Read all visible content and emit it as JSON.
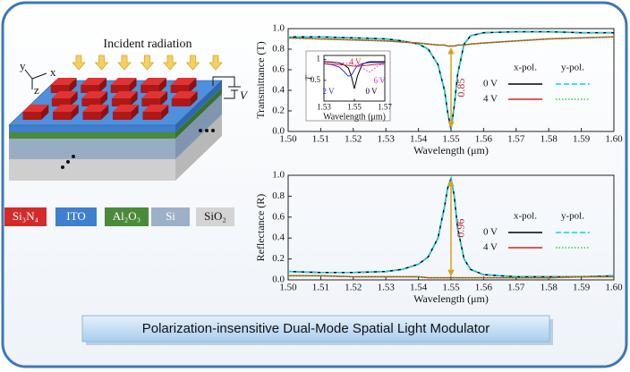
{
  "diagram": {
    "title": "Incident radiation",
    "axes": [
      "y",
      "x",
      "z"
    ],
    "voltage": "V",
    "materials": [
      {
        "name": "Si₃N₄",
        "color": "#d42a2a"
      },
      {
        "name": "ITO",
        "color": "#3f7fce"
      },
      {
        "name": "Al₂O₃",
        "color": "#4a8a3a"
      },
      {
        "name": "Si",
        "color": "#9cb0c8"
      },
      {
        "name": "SiO₂",
        "color": "#d4d4d4"
      }
    ]
  },
  "banner": "Polarization-insensitive Dual-Mode Spatial Light Modulator",
  "chart_data": [
    {
      "type": "line",
      "ylabel": "Transmittance (T)",
      "xlabel": "Wavelength (μm)",
      "annotation": "0.85",
      "xlim": [
        1.5,
        1.6
      ],
      "ylim": [
        0,
        1
      ],
      "xticks": [
        {
          "value": 1.5,
          "label": "1.50"
        },
        {
          "value": 1.51,
          "label": "1.51"
        },
        {
          "value": 1.52,
          "label": "1.52"
        },
        {
          "value": 1.53,
          "label": "1.53"
        },
        {
          "value": 1.54,
          "label": "1.54"
        },
        {
          "value": 1.55,
          "label": "1.55"
        },
        {
          "value": 1.56,
          "label": "1.56"
        },
        {
          "value": 1.57,
          "label": "1.57"
        },
        {
          "value": 1.58,
          "label": "1.58"
        },
        {
          "value": 1.59,
          "label": "1.59"
        },
        {
          "value": 1.6,
          "label": "1.60"
        }
      ],
      "yticks": [
        {
          "value": 0,
          "label": "0.0"
        },
        {
          "value": 0.2,
          "label": "0.2"
        },
        {
          "value": 0.4,
          "label": "0.4"
        },
        {
          "value": 0.6,
          "label": "0.6"
        },
        {
          "value": 0.8,
          "label": "0.8"
        },
        {
          "value": 1,
          "label": "1.0"
        }
      ],
      "x": [
        1.5,
        1.51,
        1.52,
        1.53,
        1.535,
        1.54,
        1.543,
        1.546,
        1.548,
        1.549,
        1.55,
        1.551,
        1.552,
        1.554,
        1.556,
        1.56,
        1.57,
        1.58,
        1.59,
        1.6
      ],
      "series": [
        {
          "name": "0 V",
          "pols": [
            {
              "name": "x-pol.",
              "color": "#000000",
              "style": "solid",
              "values": [
                0.92,
                0.92,
                0.91,
                0.9,
                0.88,
                0.85,
                0.8,
                0.65,
                0.4,
                0.18,
                0.02,
                0.25,
                0.55,
                0.85,
                0.93,
                0.96,
                0.97,
                0.97,
                0.96,
                0.96
              ]
            },
            {
              "name": "y-pol.",
              "color": "#10d0e0",
              "style": "dashed",
              "values": [
                0.92,
                0.92,
                0.91,
                0.9,
                0.88,
                0.85,
                0.8,
                0.65,
                0.4,
                0.18,
                0.02,
                0.25,
                0.55,
                0.85,
                0.93,
                0.96,
                0.97,
                0.97,
                0.96,
                0.96
              ]
            }
          ]
        },
        {
          "name": "4 V",
          "pols": [
            {
              "name": "x-pol.",
              "color": "#e02020",
              "style": "solid",
              "values": [
                0.91,
                0.9,
                0.89,
                0.88,
                0.87,
                0.86,
                0.85,
                0.84,
                0.84,
                0.83,
                0.83,
                0.83,
                0.84,
                0.84,
                0.85,
                0.86,
                0.88,
                0.9,
                0.91,
                0.92
              ]
            },
            {
              "name": "y-pol.",
              "color": "#30d030",
              "style": "dotted",
              "values": [
                0.91,
                0.9,
                0.89,
                0.88,
                0.87,
                0.86,
                0.85,
                0.84,
                0.84,
                0.83,
                0.83,
                0.83,
                0.84,
                0.84,
                0.85,
                0.86,
                0.88,
                0.9,
                0.91,
                0.92
              ]
            }
          ]
        }
      ]
    },
    {
      "type": "line",
      "ylabel": "Reflectance (R)",
      "xlabel": "Wavelength (μm)",
      "annotation": "0.96",
      "xlim": [
        1.5,
        1.6
      ],
      "ylim": [
        0,
        1
      ],
      "xticks": [
        {
          "value": 1.5,
          "label": "1.50"
        },
        {
          "value": 1.51,
          "label": "1.51"
        },
        {
          "value": 1.52,
          "label": "1.52"
        },
        {
          "value": 1.53,
          "label": "1.53"
        },
        {
          "value": 1.54,
          "label": "1.54"
        },
        {
          "value": 1.55,
          "label": "1.55"
        },
        {
          "value": 1.56,
          "label": "1.56"
        },
        {
          "value": 1.57,
          "label": "1.57"
        },
        {
          "value": 1.58,
          "label": "1.58"
        },
        {
          "value": 1.59,
          "label": "1.59"
        },
        {
          "value": 1.6,
          "label": "1.60"
        }
      ],
      "yticks": [
        {
          "value": 0,
          "label": "0.0"
        },
        {
          "value": 0.2,
          "label": "0.2"
        },
        {
          "value": 0.4,
          "label": "0.4"
        },
        {
          "value": 0.6,
          "label": "0.6"
        },
        {
          "value": 0.8,
          "label": "0.8"
        },
        {
          "value": 1,
          "label": "1.0"
        }
      ],
      "x": [
        1.5,
        1.51,
        1.52,
        1.53,
        1.535,
        1.54,
        1.543,
        1.546,
        1.548,
        1.549,
        1.55,
        1.551,
        1.552,
        1.554,
        1.556,
        1.56,
        1.57,
        1.58,
        1.59,
        1.6
      ],
      "series": [
        {
          "name": "0 V",
          "pols": [
            {
              "name": "x-pol.",
              "color": "#000000",
              "style": "solid",
              "values": [
                0.08,
                0.07,
                0.07,
                0.08,
                0.1,
                0.15,
                0.22,
                0.4,
                0.7,
                0.88,
                0.97,
                0.8,
                0.5,
                0.2,
                0.1,
                0.05,
                0.03,
                0.03,
                0.03,
                0.04
              ]
            },
            {
              "name": "y-pol.",
              "color": "#10d0e0",
              "style": "dashed",
              "values": [
                0.08,
                0.07,
                0.07,
                0.08,
                0.1,
                0.15,
                0.22,
                0.4,
                0.7,
                0.88,
                0.97,
                0.8,
                0.5,
                0.2,
                0.1,
                0.05,
                0.03,
                0.03,
                0.03,
                0.04
              ]
            }
          ]
        },
        {
          "name": "4 V",
          "pols": [
            {
              "name": "x-pol.",
              "color": "#e02020",
              "style": "solid",
              "values": [
                0.04,
                0.04,
                0.03,
                0.03,
                0.03,
                0.03,
                0.02,
                0.02,
                0.02,
                0.02,
                0.02,
                0.02,
                0.02,
                0.02,
                0.02,
                0.02,
                0.02,
                0.02,
                0.03,
                0.03
              ]
            },
            {
              "name": "y-pol.",
              "color": "#30d030",
              "style": "dotted",
              "values": [
                0.04,
                0.04,
                0.03,
                0.03,
                0.03,
                0.03,
                0.02,
                0.02,
                0.02,
                0.02,
                0.02,
                0.02,
                0.02,
                0.02,
                0.02,
                0.02,
                0.02,
                0.02,
                0.03,
                0.03
              ]
            }
          ]
        }
      ]
    },
    {
      "type": "line",
      "ylabel": "T",
      "xlabel": "Wavelength (μm)",
      "xlim": [
        1.53,
        1.57
      ],
      "ylim": [
        0,
        1.1
      ],
      "xticks": [
        {
          "value": 1.53,
          "label": "1.53"
        },
        {
          "value": 1.55,
          "label": "1.55"
        },
        {
          "value": 1.57,
          "label": "1.57"
        }
      ],
      "yticks": [
        0.5,
        1
      ],
      "x": [
        1.53,
        1.535,
        1.54,
        1.543,
        1.546,
        1.548,
        1.55,
        1.552,
        1.555,
        1.558,
        1.56,
        1.563,
        1.566,
        1.57
      ],
      "series": [
        {
          "name": "0 V",
          "color": "#000000",
          "style": "solid",
          "values": [
            0.95,
            0.94,
            0.92,
            0.88,
            0.8,
            0.6,
            0.3,
            0.6,
            0.88,
            0.93,
            0.95,
            0.95,
            0.95,
            0.95
          ]
        },
        {
          "name": "2 V",
          "color": "#3030e0",
          "style": "solid",
          "values": [
            0.9,
            0.88,
            0.82,
            0.72,
            0.6,
            0.62,
            0.75,
            0.85,
            0.9,
            0.92,
            0.93,
            0.93,
            0.93,
            0.93
          ]
        },
        {
          "name": "4 V",
          "color": "#e02020",
          "style": "solid",
          "values": [
            0.9,
            0.89,
            0.88,
            0.87,
            0.86,
            0.85,
            0.84,
            0.84,
            0.85,
            0.86,
            0.87,
            0.88,
            0.89,
            0.9
          ]
        },
        {
          "name": "6 V",
          "color": "#e020e0",
          "style": "dotted",
          "values": [
            0.93,
            0.93,
            0.92,
            0.92,
            0.91,
            0.9,
            0.88,
            0.85,
            0.8,
            0.74,
            0.7,
            0.78,
            0.86,
            0.9
          ]
        }
      ]
    }
  ]
}
